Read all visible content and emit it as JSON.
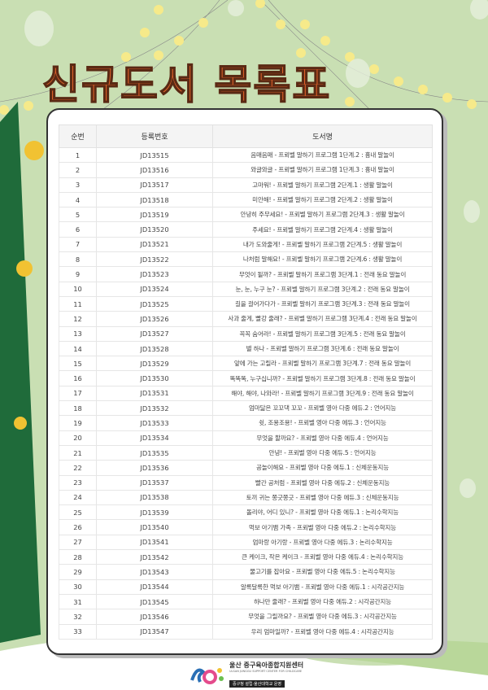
{
  "title": "신규도서 목록표",
  "table": {
    "headers": [
      "순번",
      "등록번호",
      "도서명"
    ],
    "rows": [
      [
        "1",
        "JD13515",
        "음매음매 - 프뢰벨 말하기 프로그램 1단계.2 : 흉내 말놀이"
      ],
      [
        "2",
        "JD13516",
        "와글와글 - 프뢰벨 말하기 프로그램 1단계.3 : 흉내 말놀이"
      ],
      [
        "3",
        "JD13517",
        "고마워! - 프뢰벨 말하기 프로그램 2단계.1 : 생활 말놀이"
      ],
      [
        "4",
        "JD13518",
        "미안해! - 프뢰벨 말하기 프로그램 2단계.2 : 생활 말놀이"
      ],
      [
        "5",
        "JD13519",
        "안녕히 주무세요! - 프뢰벨 말하기 프로그램 2단계.3 : 생활 말놀이"
      ],
      [
        "6",
        "JD13520",
        "주세요! - 프뢰벨 말하기 프로그램 2단계.4 : 생활 말놀이"
      ],
      [
        "7",
        "JD13521",
        "내가 도와줄게! - 프뢰벨 말하기 프로그램 2단계.5 : 생활 말놀이"
      ],
      [
        "8",
        "JD13522",
        "나처럼 말해요! - 프뢰벨 말하기 프로그램 2단계.6 : 생활 말놀이"
      ],
      [
        "9",
        "JD13523",
        "무엇이 될까? - 프뢰벨 말하기 프로그램 3단계.1 : 전래 동요 말놀이"
      ],
      [
        "10",
        "JD13524",
        "눈, 눈, 누구 눈? - 프뢰벨 말하기 프로그램 3단계.2 : 전래 동요 말놀이"
      ],
      [
        "11",
        "JD13525",
        "길을 걸어가다가 - 프뢰벨 말하기 프로그램 3단계.3 : 전래 동요 말놀이"
      ],
      [
        "12",
        "JD13526",
        "사과 줄게, 빨강 줄래? - 프뢰벨 말하기 프로그램 3단계.4 : 전래 동요 말놀이"
      ],
      [
        "13",
        "JD13527",
        "꼭꼭 숨어라! - 프뢰벨 말하기 프로그램 3단계.5 : 전래 동요 말놀이"
      ],
      [
        "14",
        "JD13528",
        "별 하나 - 프뢰벨 말하기 프로그램 3단계.6 : 전래 동요 말놀이"
      ],
      [
        "15",
        "JD13529",
        "앞에 가는 고릴라 - 프뢰벨 말하기 프로그램 3단계.7 : 전래 동요 말놀이"
      ],
      [
        "16",
        "JD13530",
        "똑똑똑, 누구십니까? - 프뢰벨 말하기 프로그램 3단계.8 : 전래 동요 말놀이"
      ],
      [
        "17",
        "JD13531",
        "해야, 해야, 나와라! - 프뢰벨 말하기 프로그램 3단계.9 : 전래 동요 말놀이"
      ],
      [
        "18",
        "JD13532",
        "엄마닮은 꼬꼬댁 꼬꼬 - 프뢰벨 영아 다중 에듀.2 : 언어지능"
      ],
      [
        "19",
        "JD13533",
        "쉿, 조용조용! - 프뢰벨 영아 다중 에듀.3 : 언어지능"
      ],
      [
        "20",
        "JD13534",
        "무엇을 할까요? - 프뢰벨 영아 다중 에듀.4 : 언어지능"
      ],
      [
        "21",
        "JD13535",
        "안녕! - 프뢰벨 영아 다중 에듀.5 : 언어지능"
      ],
      [
        "22",
        "JD13536",
        "공놀이해요 - 프뢰벨 영아 다중 에듀.1 : 신체운동지능"
      ],
      [
        "23",
        "JD13537",
        "빨간 공처럼 - 프뢰벨 영아 다중 에듀.2 : 신체운동지능"
      ],
      [
        "24",
        "JD13538",
        "토끼 귀는 쫑긋쫑긋 - 프뢰벨 영아 다중 에듀.3 : 신체운동지능"
      ],
      [
        "25",
        "JD13539",
        "돌리야, 어디 있니? - 프뢰벨 영아 다중 에듀.1 : 논리수학지능"
      ],
      [
        "26",
        "JD13540",
        "먹보 아기뱀 가족 - 프뢰벨 영아 다중 에듀.2 : 논리수학지능"
      ],
      [
        "27",
        "JD13541",
        "엄마랑 아기랑 - 프뢰벨 영아 다중 에듀.3 : 논리수학지능"
      ],
      [
        "28",
        "JD13542",
        "큰 케이크, 작은 케이크 - 프뢰벨 영아 다중 에듀.4 : 논리수학지능"
      ],
      [
        "29",
        "JD13543",
        "물고기를 잡아요 - 프뢰벨 영아 다중 에듀.5 : 논리수학지능"
      ],
      [
        "30",
        "JD13544",
        "알록달록한 먹보 아기뱀 - 프뢰벨 영아 다중 에듀.1 : 시각공간지능"
      ],
      [
        "31",
        "JD13545",
        "하나만 줄래? - 프뢰벨 영아 다중 에듀.2 : 시각공간지능"
      ],
      [
        "32",
        "JD13546",
        "무엇을 그릴까요? - 프뢰벨 영아 다중 에듀.3 : 시각공간지능"
      ],
      [
        "33",
        "JD13547",
        "우리 엄마일까? - 프뢰벨 영아 다중 에듀.4 : 시각공간지능"
      ]
    ]
  },
  "footer": {
    "org_name": "울산 중구육아종합지원센터",
    "org_name_en": "ULSAN JUNGGU SUPPORT CENTER FOR CHILDCARE",
    "operator": "중구청 설립·울산대학교 운영"
  },
  "colors": {
    "background": "#c9dfb3",
    "title": "#e0622a",
    "tree": "#1f6b3a",
    "lights": "#f6ea8a"
  }
}
